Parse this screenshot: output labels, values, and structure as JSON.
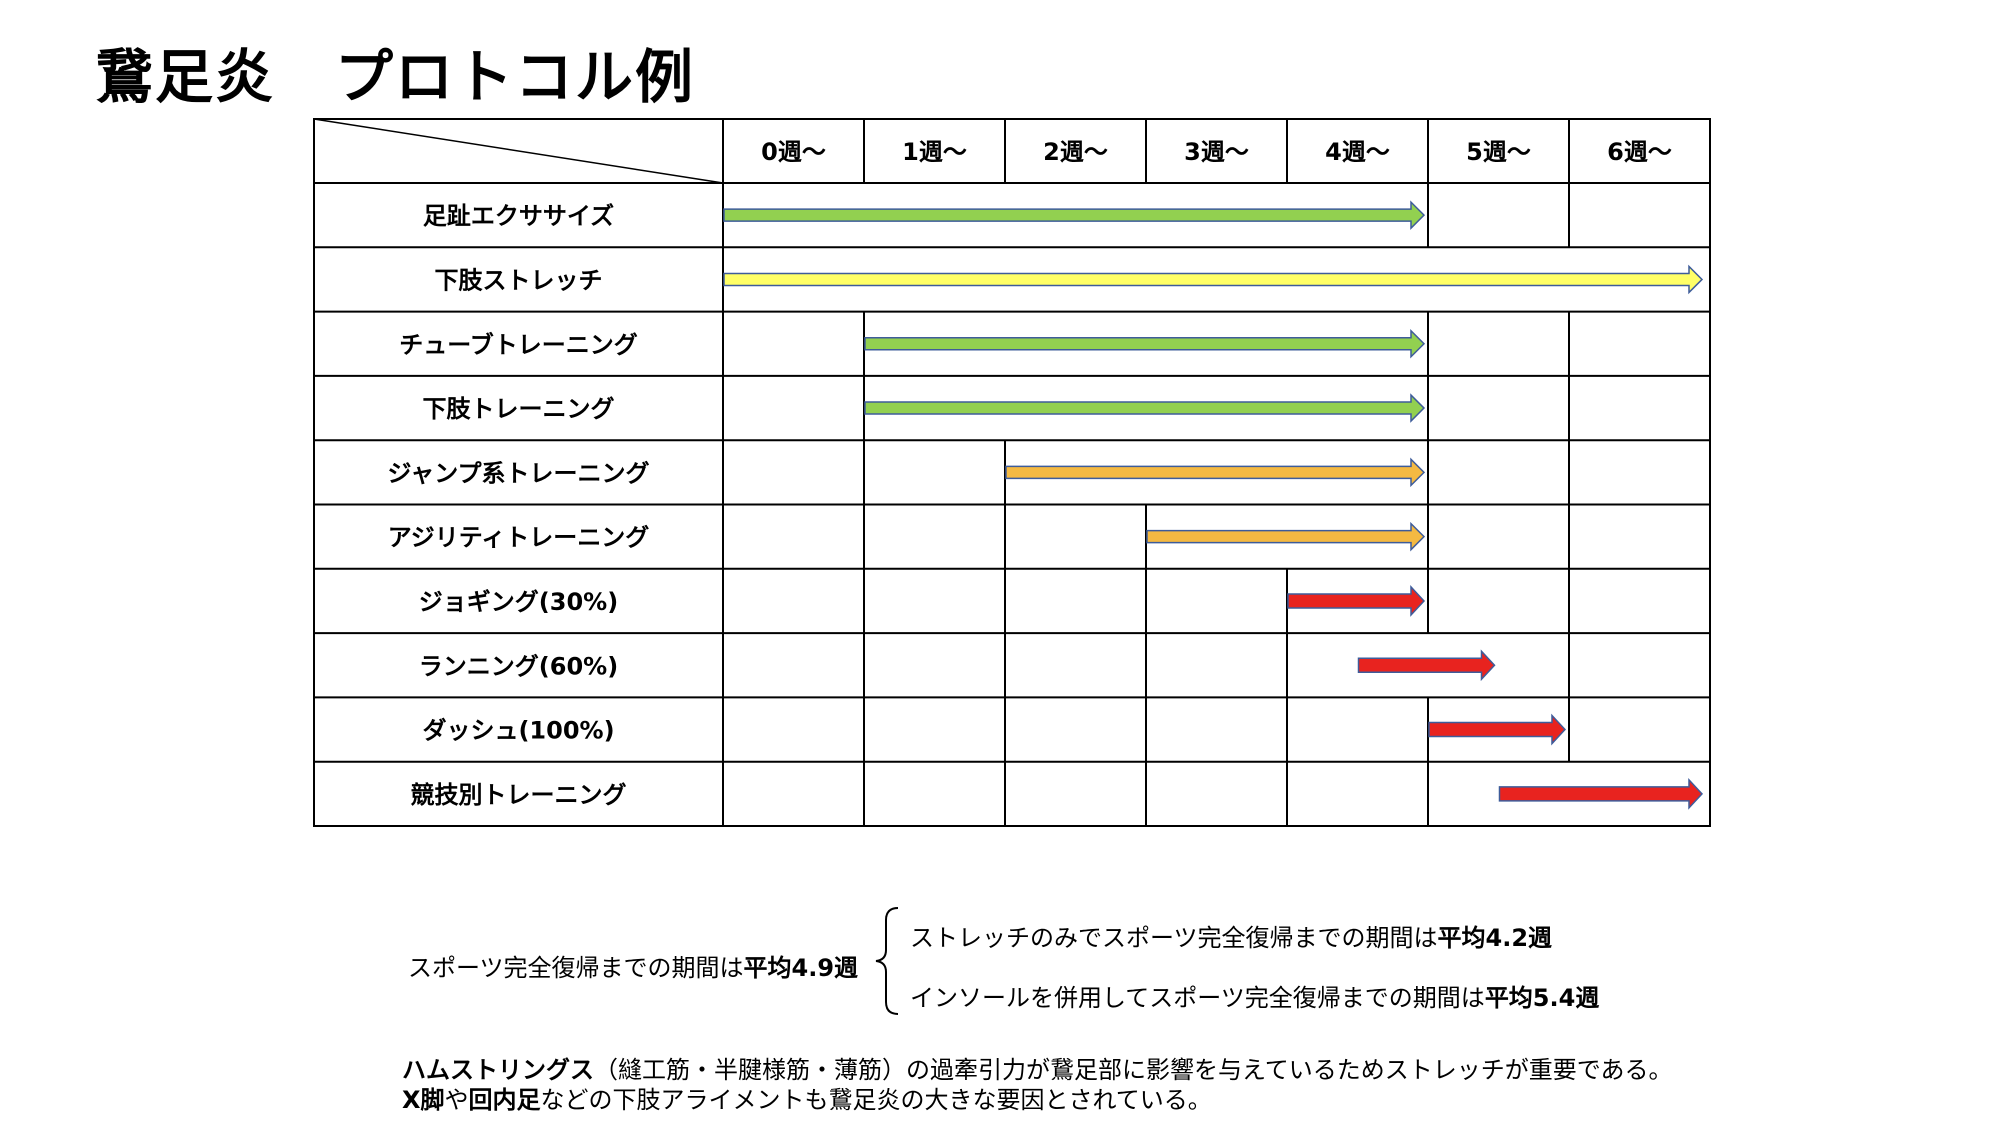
{
  "title": "鵞足炎　プロトコル例",
  "weeks": [
    "0週〜",
    "1週〜",
    "2週〜",
    "3週〜",
    "4週〜",
    "5週〜",
    "6週〜"
  ],
  "phases": [
    {
      "label": "足趾エクササイズ",
      "start_week": 0,
      "end_week": 5,
      "color": "#92d050",
      "size": "thin"
    },
    {
      "label": "下肢ストレッチ",
      "start_week": 0,
      "end_week": 7,
      "color": "#ffff66",
      "size": "thin"
    },
    {
      "label": "チューブトレーニング",
      "start_week": 1,
      "end_week": 5,
      "color": "#92d050",
      "size": "thin"
    },
    {
      "label": "下肢トレーニング",
      "start_week": 1,
      "end_week": 5,
      "color": "#92d050",
      "size": "thin"
    },
    {
      "label": "ジャンプ系トレーニング",
      "start_week": 2,
      "end_week": 5,
      "color": "#f4b942",
      "size": "thin"
    },
    {
      "label": "アジリティトレーニング",
      "start_week": 3,
      "end_week": 5,
      "color": "#f4b942",
      "size": "thin"
    },
    {
      "label": "ジョギング(30%)",
      "start_week": 4,
      "end_week": 5,
      "color": "#e8231f",
      "size": "thick"
    },
    {
      "label": "ランニング(60%)",
      "start_week": 4.5,
      "end_week": 5.5,
      "color": "#e8231f",
      "size": "thick"
    },
    {
      "label": "ダッシュ(100%)",
      "start_week": 5,
      "end_week": 6,
      "color": "#e8231f",
      "size": "thick"
    },
    {
      "label": "競技別トレーニング",
      "start_week": 5.5,
      "end_week": 7,
      "color": "#e8231f",
      "size": "thick"
    }
  ],
  "notes": {
    "avg_prefix": "スポーツ完全復帰までの期間は",
    "avg_value": "平均4.9週",
    "stretch_prefix": "ストレッチのみでスポーツ完全復帰までの期間は",
    "stretch_value": "平均4.2週",
    "insole_prefix": "インソールを併用してスポーツ完全復帰までの期間は",
    "insole_value": "平均5.4週",
    "line1_bold": "ハムストリングス",
    "line1_rest": "（縫工筋・半腱様筋・薄筋）の過牽引力が鵞足部に影響を与えているためストレッチが重要である。",
    "line2_bold1": "X脚",
    "line2_mid": "や",
    "line2_bold2": "回内足",
    "line2_rest": "などの下肢アライメントも鵞足炎の大きな要因とされている。"
  }
}
